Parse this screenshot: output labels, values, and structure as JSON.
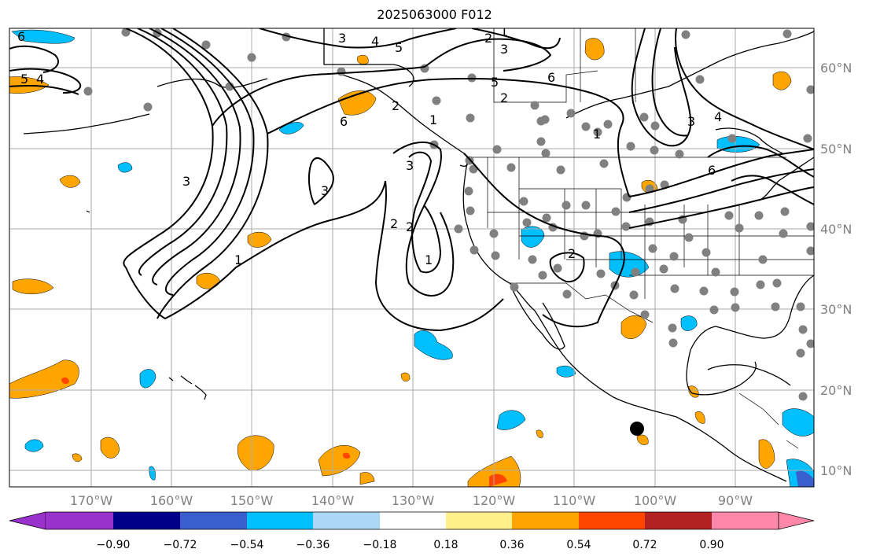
{
  "map": {
    "title": "2025063000 F012",
    "lon_labels": [
      "170°W",
      "160°W",
      "150°W",
      "140°W",
      "130°W",
      "120°W",
      "110°W",
      "100°W",
      "90°W"
    ],
    "lat_labels": [
      "60°N",
      "50°N",
      "40°N",
      "30°N",
      "20°N",
      "10°N"
    ],
    "contour_labels": [
      "6",
      "4",
      "5",
      "3",
      "4",
      "5",
      "2",
      "1",
      "2",
      "3",
      "6",
      "5",
      "2",
      "1",
      "1",
      "3",
      "3",
      "2",
      "3",
      "1",
      "2",
      "6",
      "4",
      "1",
      "6",
      "3",
      "2"
    ],
    "colorbar": {
      "tick_labels": [
        "−0.90",
        "−0.72",
        "−0.54",
        "−0.36",
        "−0.18",
        "0.18",
        "0.36",
        "0.54",
        "0.72",
        "0.90"
      ],
      "bins": [
        {
          "color": "#9932cc"
        },
        {
          "color": "#00008b"
        },
        {
          "color": "#3a5fcd"
        },
        {
          "color": "#00bfff"
        },
        {
          "color": "#add8f5"
        },
        {
          "color": "#ffffff"
        },
        {
          "color": "#fff08a"
        },
        {
          "color": "#ffa500"
        },
        {
          "color": "#ff4500"
        },
        {
          "color": "#b22222"
        },
        {
          "color": "#ff88aa"
        }
      ]
    },
    "fill_colors": {
      "warm": "#ffa500",
      "hot": "#ff4500",
      "cool": "#00bfff",
      "deep": "#3a5fcd"
    },
    "station_color": "#808080"
  }
}
